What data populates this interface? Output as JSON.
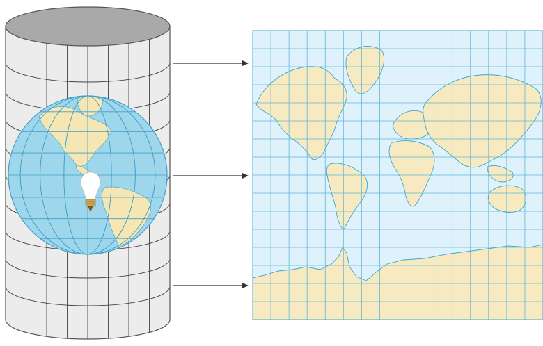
{
  "diagram": {
    "kind": "cylindrical-map-projection",
    "colors": {
      "background": "#ffffff",
      "cylinder_body": "#ececec",
      "cylinder_top": "#a9a9a9",
      "cylinder_outline": "#555555",
      "cylinder_grid": "#444444",
      "globe_ocean": "#9ed7ec",
      "globe_land": "#f6e6b4",
      "globe_grid": "#3f9fc8",
      "map_ocean": "#dff2fb",
      "map_land": "#f7e9c0",
      "map_coast": "#3aa7cf",
      "map_grid": "#5cb8d9",
      "arrow": "#333333",
      "bulb": "#ffffff"
    },
    "icons": [
      "light-bulb-icon",
      "arrow-right-icon"
    ],
    "arrows": [
      {
        "from": "cylinder-upper",
        "to": "map-upper"
      },
      {
        "from": "cylinder-middle",
        "to": "map-middle"
      },
      {
        "from": "cylinder-lower",
        "to": "map-lower"
      }
    ]
  }
}
